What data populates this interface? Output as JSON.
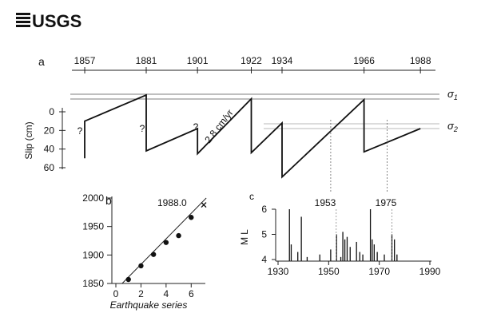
{
  "logo": {
    "text": "USGS"
  },
  "chart_data": [
    {
      "type": "line",
      "panel": "a",
      "title": "",
      "ylabel": "Slip (cm)",
      "ylim": [
        0,
        60
      ],
      "y_ticks": [
        "0",
        "20",
        "40",
        "60"
      ],
      "xlim": [
        1852,
        1992
      ],
      "event_years": [
        1857,
        1881,
        1901,
        1922,
        1934,
        1966,
        1988
      ],
      "event_labels": [
        "1857",
        "1881",
        "1901",
        "1922",
        "1934",
        "1966",
        "1988"
      ],
      "rate_label": "2.8 cm/yr",
      "unknown_marks": [
        "?",
        "?",
        "?"
      ],
      "threshold_labels": {
        "s1_base": "σ",
        "s1_sub": "1",
        "s2_base": "σ",
        "s2_sub": "2"
      },
      "series": [
        {
          "name": "slip",
          "points": [
            [
              1857,
              50
            ],
            [
              1857,
              10
            ],
            [
              1881,
              -18
            ],
            [
              1881,
              42
            ],
            [
              1901,
              18
            ],
            [
              1901,
              45
            ],
            [
              1922,
              -14
            ],
            [
              1922,
              44
            ],
            [
              1934,
              12
            ],
            [
              1934,
              70
            ],
            [
              1966,
              -13
            ],
            [
              1966,
              43
            ],
            [
              1988,
              18
            ]
          ]
        }
      ],
      "verticals": [
        1953,
        1975
      ]
    },
    {
      "type": "scatter",
      "panel": "b",
      "xlabel": "Earthquake series",
      "ylabel": "",
      "xlim": [
        0,
        7
      ],
      "ylim": [
        1850,
        2000
      ],
      "x_ticks": [
        "0",
        "2",
        "4",
        "6"
      ],
      "y_ticks": [
        "1850",
        "1900",
        "1950",
        "2000"
      ],
      "x": [
        1,
        2,
        3,
        4,
        5,
        6
      ],
      "y": [
        1857,
        1881,
        1901,
        1922,
        1934,
        1966
      ],
      "prediction": {
        "x": 7,
        "y": 1988,
        "label": "1988.0",
        "marker": "x"
      },
      "fit_line": [
        [
          0.5,
          1850
        ],
        [
          7.2,
          2000
        ]
      ]
    },
    {
      "type": "bar",
      "panel": "c",
      "xlabel": "",
      "ylabel_base": "M",
      "ylabel_sub": "L",
      "xlim": [
        1930,
        1990
      ],
      "ylim": [
        4,
        6
      ],
      "x_ticks": [
        "1930",
        "1950",
        "1970",
        "1990"
      ],
      "y_ticks": [
        "4",
        "5",
        "6"
      ],
      "annotations": [
        "1953",
        "1975"
      ],
      "events": [
        {
          "year": 1934.5,
          "mag": 6.0
        },
        {
          "year": 1935.2,
          "mag": 4.6
        },
        {
          "year": 1937.8,
          "mag": 4.3
        },
        {
          "year": 1939.2,
          "mag": 5.7
        },
        {
          "year": 1941.5,
          "mag": 4.1
        },
        {
          "year": 1946.5,
          "mag": 4.2
        },
        {
          "year": 1950.8,
          "mag": 4.4
        },
        {
          "year": 1953.1,
          "mag": 5.0
        },
        {
          "year": 1954.8,
          "mag": 4.1
        },
        {
          "year": 1955.6,
          "mag": 5.1
        },
        {
          "year": 1956.4,
          "mag": 4.8
        },
        {
          "year": 1957.3,
          "mag": 4.9
        },
        {
          "year": 1958.5,
          "mag": 4.5
        },
        {
          "year": 1961.0,
          "mag": 4.7
        },
        {
          "year": 1962.3,
          "mag": 4.3
        },
        {
          "year": 1963.5,
          "mag": 4.2
        },
        {
          "year": 1966.5,
          "mag": 6.0
        },
        {
          "year": 1967.2,
          "mag": 4.8
        },
        {
          "year": 1968.0,
          "mag": 4.6
        },
        {
          "year": 1969.2,
          "mag": 4.3
        },
        {
          "year": 1972.0,
          "mag": 4.2
        },
        {
          "year": 1975.0,
          "mag": 5.0
        },
        {
          "year": 1976.0,
          "mag": 4.8
        },
        {
          "year": 1977.0,
          "mag": 4.2
        }
      ]
    }
  ]
}
